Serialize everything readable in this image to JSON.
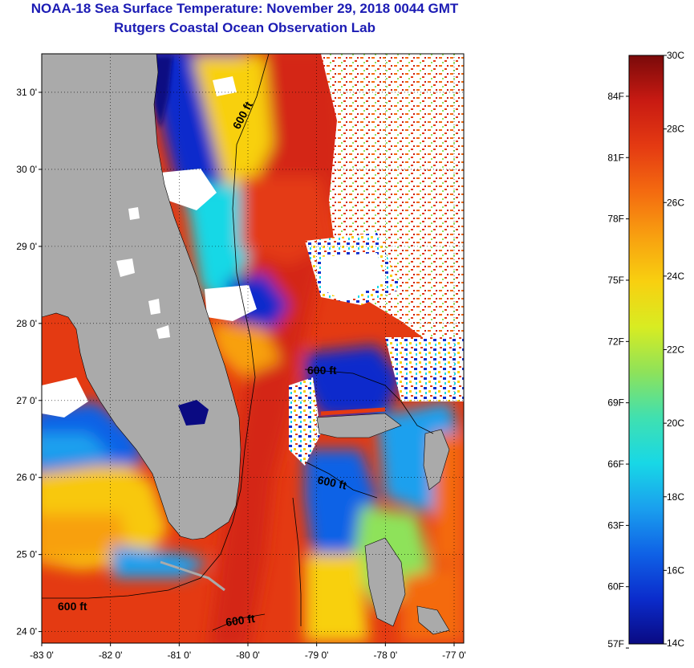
{
  "title": "NOAA-18 Sea Surface Temperature:  November 29, 2018 0044 GMT",
  "subtitle": "Rutgers Coastal Ocean Observation Lab",
  "map": {
    "lon_range": [
      -83,
      -76.86
    ],
    "lat_range": [
      23.85,
      31.5
    ],
    "lon_ticks": [
      "-83 0'",
      "-82 0'",
      "-81 0'",
      "-80 0'",
      "-79 0'",
      "-78 0'",
      "-77 0'"
    ],
    "lat_ticks": [
      "24 0'",
      "25 0'",
      "26 0'",
      "27 0'",
      "28 0'",
      "29 0'",
      "30 0'",
      "31 0'"
    ],
    "contour_label": "600 ft",
    "land_color": "#aaaaaa",
    "cloud_color": "#ffffff"
  },
  "colorbar": {
    "c_range": [
      14,
      30
    ],
    "celsius_labels": [
      "30C",
      "28C",
      "26C",
      "24C",
      "22C",
      "20C",
      "18C",
      "16C",
      "14C"
    ],
    "fahrenheit_labels": [
      "84F",
      "81F",
      "78F",
      "75F",
      "72F",
      "69F",
      "66F",
      "63F",
      "60F",
      "57F"
    ],
    "colors": [
      "#0a0a82",
      "#0b2ccc",
      "#0f62e6",
      "#1aa0ee",
      "#18d8e6",
      "#40e0b0",
      "#8ee25a",
      "#d8ec22",
      "#f8d010",
      "#f8a010",
      "#f46a10",
      "#e43a12",
      "#c81a12",
      "#7a0a0a"
    ]
  }
}
